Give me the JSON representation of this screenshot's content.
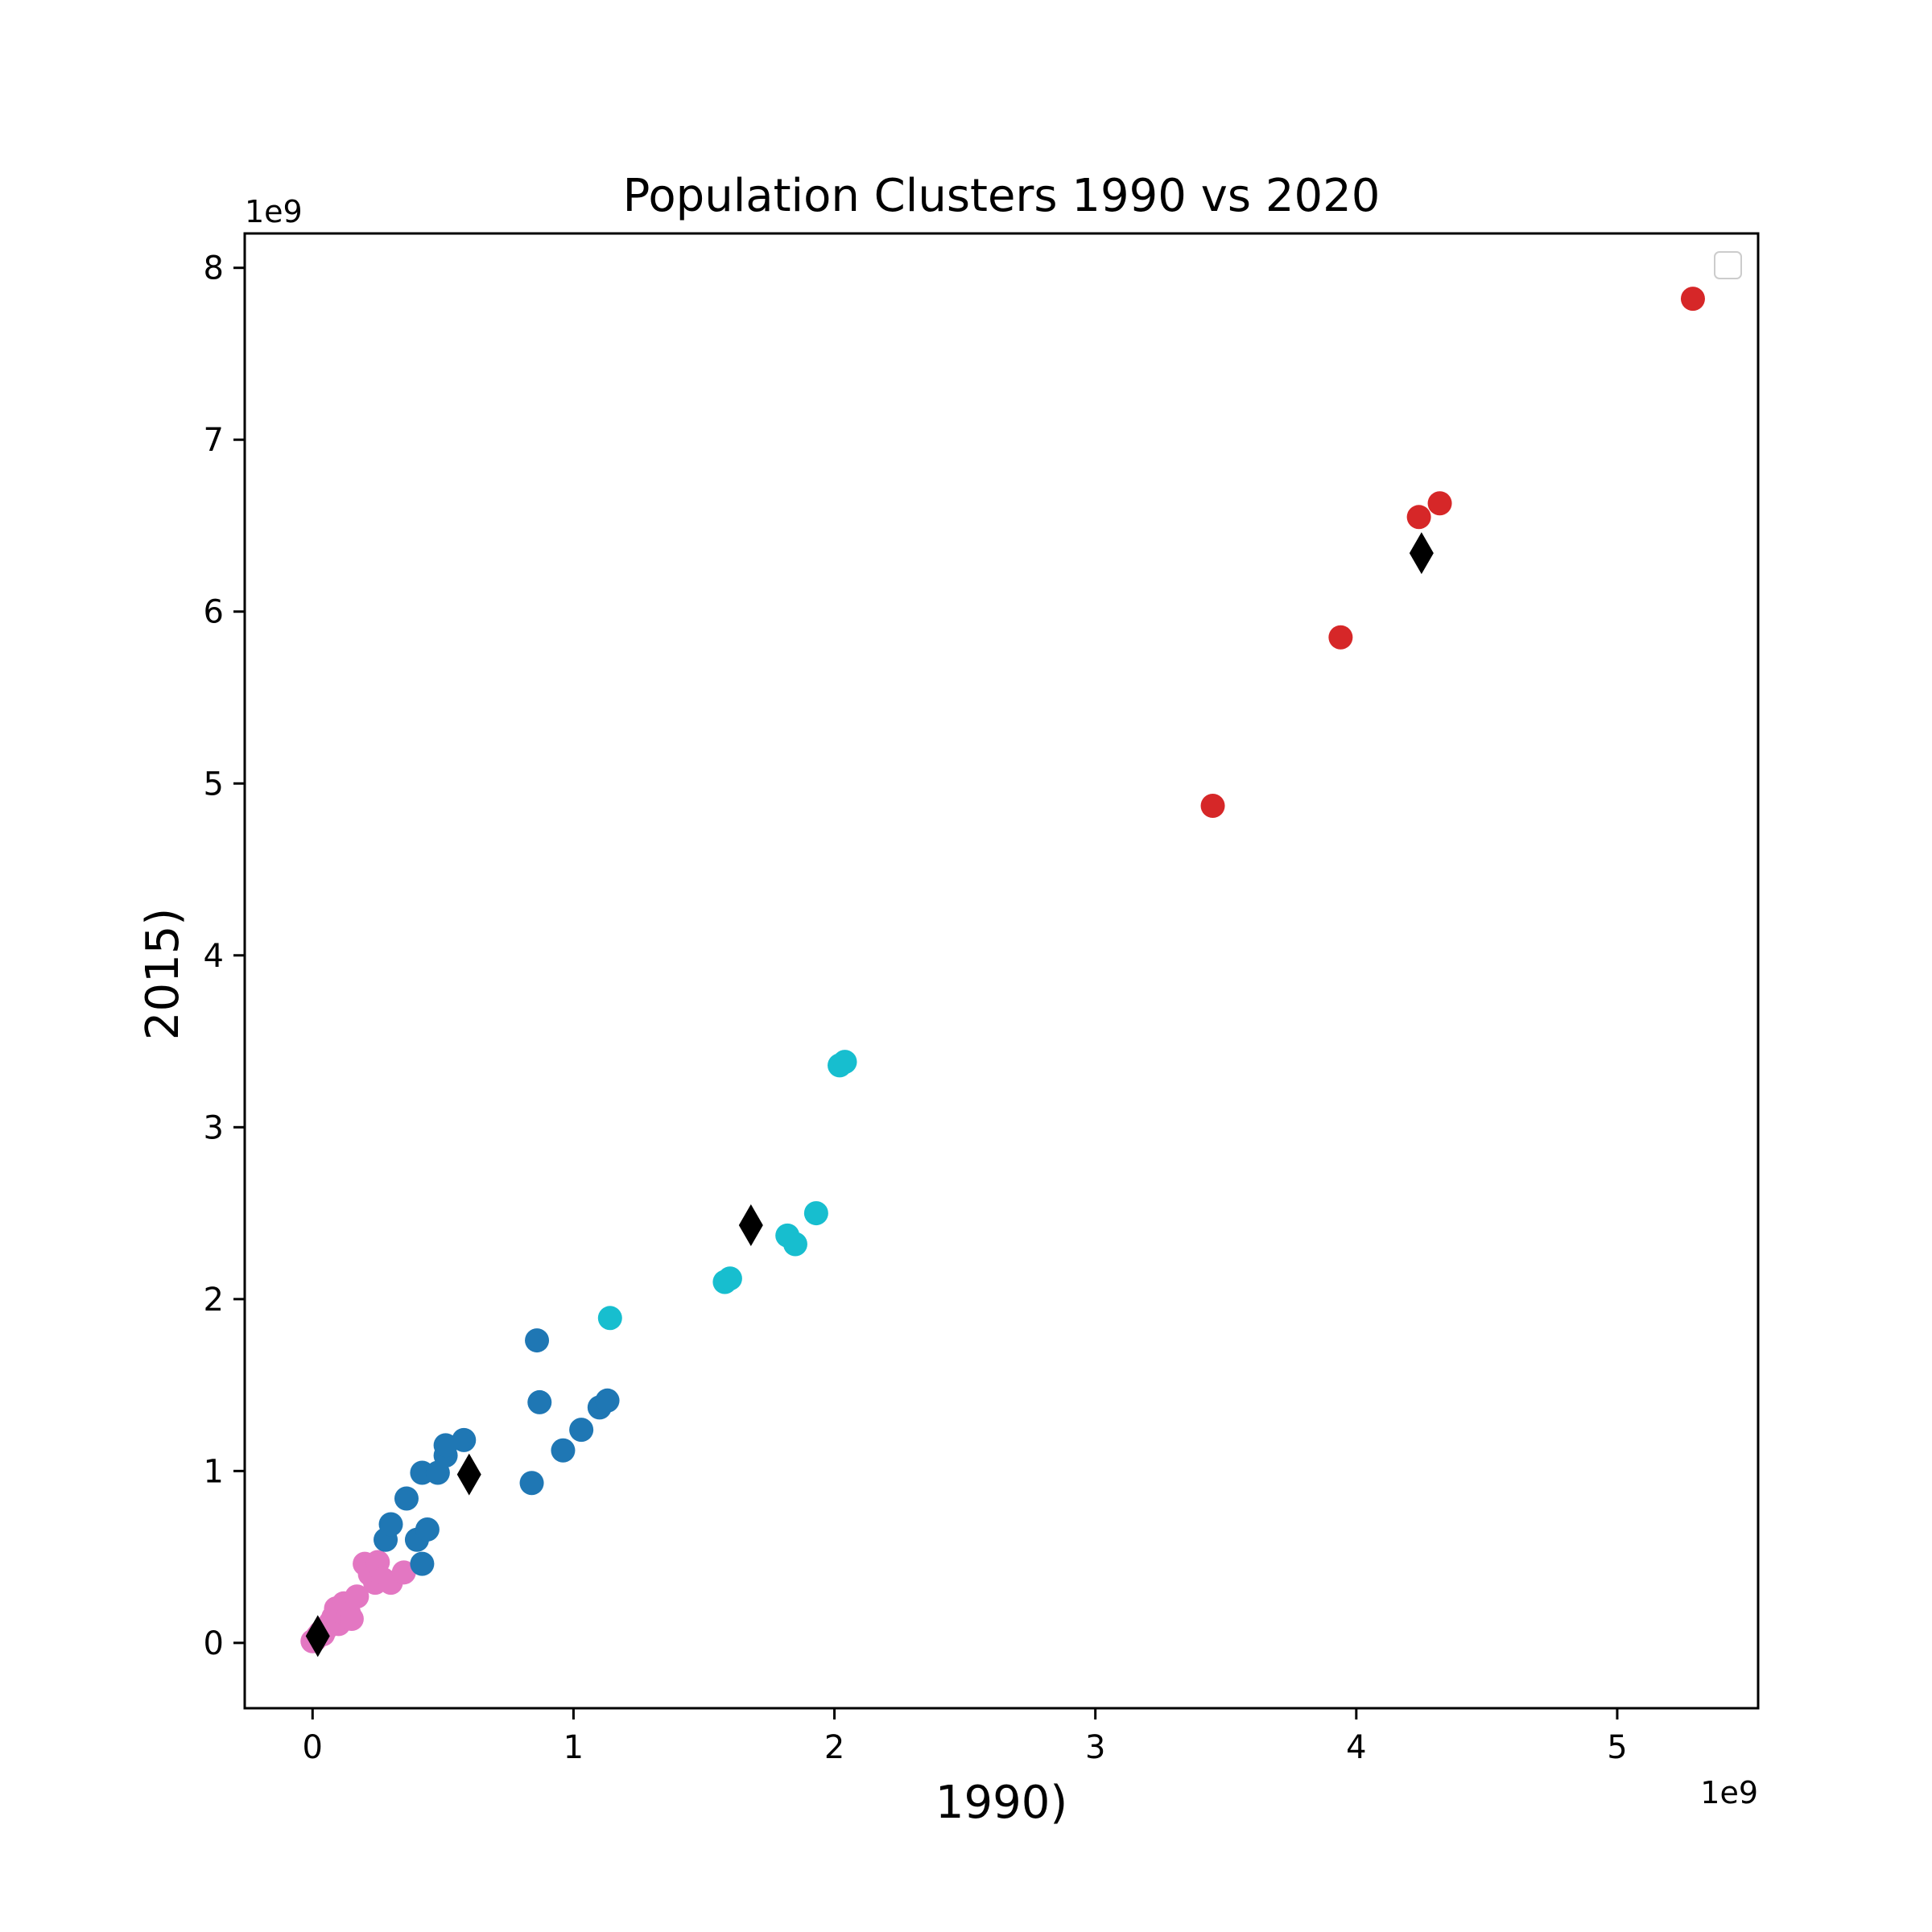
{
  "chart_data": {
    "type": "scatter",
    "title": "Population Clusters 1990 vs 2020",
    "xlabel": "1990)",
    "ylabel": "2015)",
    "x_offset_label": "1e9",
    "y_offset_label": "1e9",
    "xlim": [
      -0.26,
      5.54
    ],
    "ylim": [
      -0.38,
      8.2
    ],
    "x_ticks": [
      0,
      1,
      2,
      3,
      4,
      5
    ],
    "y_ticks": [
      0,
      1,
      2,
      3,
      4,
      5,
      6,
      7,
      8
    ],
    "grid": false,
    "legend": {
      "placement": "top-right",
      "entries": []
    },
    "series": [
      {
        "color": "#e377c2",
        "marker": "circle",
        "points": [
          [
            0.0,
            0.01
          ],
          [
            0.01,
            0.02
          ],
          [
            0.02,
            0.04
          ],
          [
            0.03,
            0.06
          ],
          [
            0.04,
            0.05
          ],
          [
            0.05,
            0.08
          ],
          [
            0.06,
            0.1
          ],
          [
            0.07,
            0.12
          ],
          [
            0.08,
            0.15
          ],
          [
            0.09,
            0.2
          ],
          [
            0.1,
            0.11
          ],
          [
            0.11,
            0.18
          ],
          [
            0.12,
            0.23
          ],
          [
            0.14,
            0.17
          ],
          [
            0.15,
            0.14
          ],
          [
            0.17,
            0.27
          ],
          [
            0.2,
            0.46
          ],
          [
            0.22,
            0.4
          ],
          [
            0.24,
            0.35
          ],
          [
            0.25,
            0.47
          ],
          [
            0.27,
            0.37
          ],
          [
            0.3,
            0.35
          ],
          [
            0.35,
            0.41
          ]
        ]
      },
      {
        "color": "#1f77b4",
        "marker": "circle",
        "points": [
          [
            0.28,
            0.6
          ],
          [
            0.3,
            0.69
          ],
          [
            0.36,
            0.84
          ],
          [
            0.4,
            0.6
          ],
          [
            0.42,
            0.99
          ],
          [
            0.42,
            0.46
          ],
          [
            0.44,
            0.66
          ],
          [
            0.48,
            0.99
          ],
          [
            0.51,
            1.09
          ],
          [
            0.51,
            1.15
          ],
          [
            0.58,
            1.18
          ],
          [
            0.84,
            0.93
          ],
          [
            0.86,
            1.76
          ],
          [
            0.87,
            1.4
          ],
          [
            0.96,
            1.12
          ],
          [
            1.03,
            1.24
          ],
          [
            1.1,
            1.37
          ],
          [
            1.13,
            1.41
          ]
        ]
      },
      {
        "color": "#17becf",
        "marker": "circle",
        "points": [
          [
            1.14,
            1.89
          ],
          [
            1.58,
            2.1
          ],
          [
            1.6,
            2.12
          ],
          [
            1.82,
            2.37
          ],
          [
            1.85,
            2.32
          ],
          [
            1.93,
            2.5
          ],
          [
            2.02,
            3.36
          ],
          [
            2.04,
            3.38
          ]
        ]
      },
      {
        "color": "#d62728",
        "marker": "circle",
        "points": [
          [
            3.45,
            4.87
          ],
          [
            3.94,
            5.85
          ],
          [
            4.24,
            6.55
          ],
          [
            4.32,
            6.63
          ],
          [
            5.29,
            7.82
          ]
        ]
      },
      {
        "color": "#000000",
        "marker": "diamond",
        "points": [
          [
            0.02,
            0.04
          ],
          [
            0.6,
            0.98
          ],
          [
            1.68,
            2.43
          ],
          [
            4.25,
            6.34
          ]
        ]
      }
    ]
  }
}
